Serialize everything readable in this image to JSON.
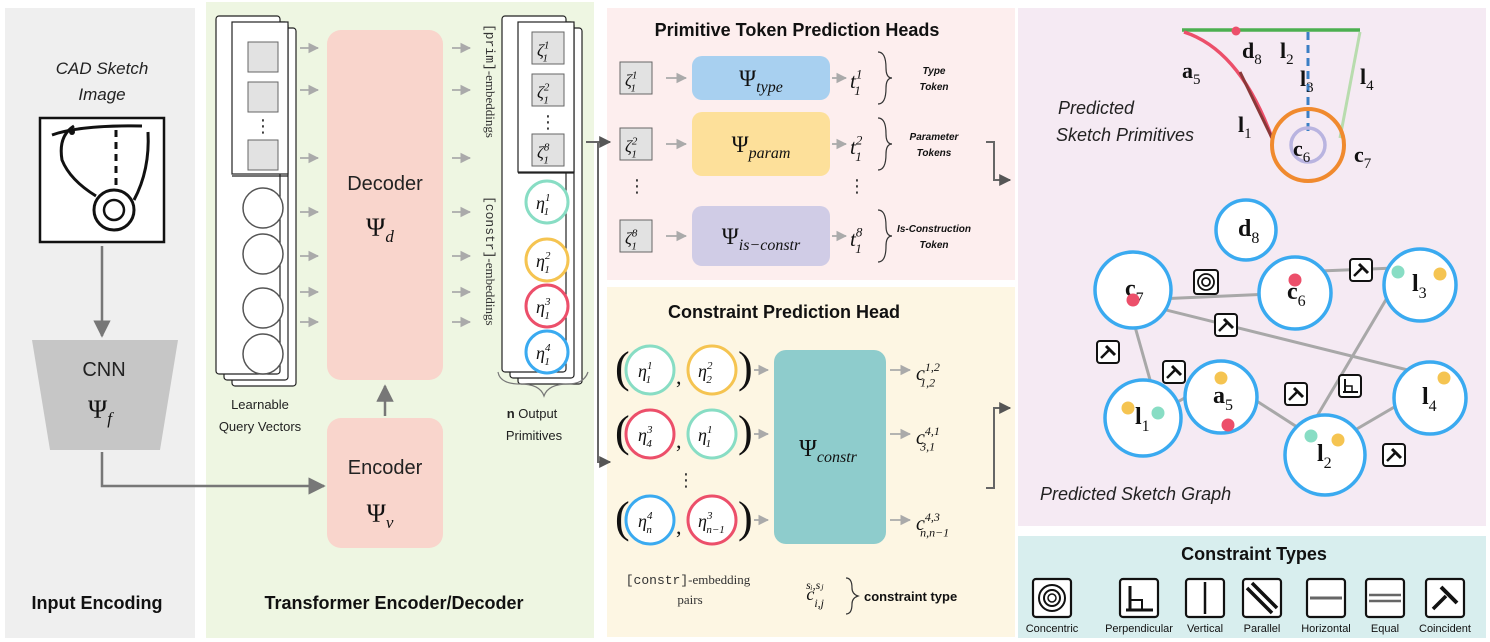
{
  "colors": {
    "panel_input": "#efefef",
    "panel_transformer": "#eef6e2",
    "panel_heads": "#fdeeee",
    "panel_constraint_head": "#fdf6e3",
    "panel_graph": "#f5eaf3",
    "panel_types": "#d8eeee",
    "decoder_encoder": "#f9d5cc",
    "psi_type": "#a8d0f0",
    "psi_param": "#fde09a",
    "psi_isconstr": "#d0cce6",
    "psi_constr": "#8ecccc",
    "node_blue": "#3aaaf0",
    "teal": "#88ddc4",
    "yellow": "#f5c451",
    "pink": "#ec4f6a",
    "orange": "#f08a2e",
    "green": "#4caf50",
    "light_green": "#b8dcae",
    "dark_red": "#8a3838"
  },
  "input_encoding": {
    "image_caption": "CAD Sketch Image",
    "image_caption_line1": "CAD Sketch",
    "image_caption_line2": "Image",
    "cnn_label": "CNN",
    "cnn_symbol": "Ψ",
    "cnn_sub": "f",
    "section_title": "Input Encoding"
  },
  "transformer": {
    "decoder_label": "Decoder",
    "decoder_symbol": "Ψ",
    "decoder_sub": "d",
    "encoder_label": "Encoder",
    "encoder_symbol": "Ψ",
    "encoder_sub": "v",
    "query_label_line1": "Learnable",
    "query_label_line2": "Query Vectors",
    "prim_embeddings_code": "[prim]",
    "prim_embeddings_text": "-embeddings",
    "constr_embeddings_code": "[constr]",
    "constr_embeddings_text": "-embeddings",
    "output_label_bold": "n",
    "output_label_rest": " Output",
    "output_label_line2": "Primitives",
    "section_title": "Transformer Encoder/Decoder",
    "zeta_tokens": [
      {
        "base": "ζ",
        "sub": "1",
        "sup": "1"
      },
      {
        "base": "ζ",
        "sub": "1",
        "sup": "2"
      },
      {
        "base": "ζ",
        "sub": "1",
        "sup": "8"
      }
    ],
    "eta_tokens": [
      {
        "base": "η",
        "sub": "1",
        "sup": "1",
        "color": "#88ddc4"
      },
      {
        "base": "η",
        "sub": "1",
        "sup": "2",
        "color": "#f5c451"
      },
      {
        "base": "η",
        "sub": "1",
        "sup": "3",
        "color": "#ec4f6a"
      },
      {
        "base": "η",
        "sub": "1",
        "sup": "4",
        "color": "#3aaaf0"
      }
    ]
  },
  "primitive_heads": {
    "title": "Primitive Token Prediction Heads",
    "rows": [
      {
        "input": {
          "base": "ζ",
          "sub": "1",
          "sup": "1"
        },
        "psi": "Ψ",
        "psi_sub": "type",
        "out": {
          "base": "t",
          "sub": "1",
          "sup": "1"
        },
        "label_line1": "Type",
        "label_line2": "Token"
      },
      {
        "input": {
          "base": "ζ",
          "sub": "1",
          "sup": "2"
        },
        "psi": "Ψ",
        "psi_sub": "param",
        "out": {
          "base": "t",
          "sub": "1",
          "sup": "2"
        },
        "label_line1": "Parameter",
        "label_line2": "Tokens"
      },
      {
        "input": {
          "base": "ζ",
          "sub": "1",
          "sup": "8"
        },
        "psi": "Ψ",
        "psi_sub": "is−constr",
        "out": {
          "base": "t",
          "sub": "1",
          "sup": "8"
        },
        "label_line1": "Is-Construction",
        "label_line2": "Token"
      }
    ]
  },
  "constraint_head": {
    "title": "Constraint Prediction Head",
    "psi": "Ψ",
    "psi_sub": "constr",
    "pairs": [
      {
        "a": {
          "base": "η",
          "sub": "1",
          "sup": "1",
          "color": "#88ddc4"
        },
        "b": {
          "base": "η",
          "sub": "2",
          "sup": "2",
          "color": "#f5c451"
        },
        "out": {
          "base": "c",
          "sub": "1,2",
          "sup": "1,2"
        }
      },
      {
        "a": {
          "base": "η",
          "sub": "4",
          "sup": "3",
          "color": "#ec4f6a"
        },
        "b": {
          "base": "η",
          "sub": "1",
          "sup": "1",
          "color": "#88ddc4"
        },
        "out": {
          "base": "c",
          "sub": "3,1",
          "sup": "4,1"
        }
      },
      {
        "a": {
          "base": "η",
          "sub": "n",
          "sup": "4",
          "color": "#3aaaf0"
        },
        "b": {
          "base": "η",
          "sub": "n−1",
          "sup": "3",
          "color": "#ec4f6a"
        },
        "out": {
          "base": "c",
          "sub": "n,n−1",
          "sup": "4,3"
        }
      }
    ],
    "pairs_label_code": "[constr]",
    "pairs_label_text": "-embedding",
    "pairs_label_line2": "pairs",
    "legend_symbol": {
      "base": "c",
      "sub": "i,j",
      "sup": "sᵢ,sⱼ"
    },
    "legend_text": "constraint type"
  },
  "sketch_primitives": {
    "title_line1": "Predicted",
    "title_line2": "Sketch Primitives",
    "labels": [
      {
        "base": "d",
        "sub": "8"
      },
      {
        "base": "l",
        "sub": "2"
      },
      {
        "base": "a",
        "sub": "5"
      },
      {
        "base": "l",
        "sub": "3"
      },
      {
        "base": "l",
        "sub": "4"
      },
      {
        "base": "l",
        "sub": "1"
      },
      {
        "base": "c",
        "sub": "6"
      },
      {
        "base": "c",
        "sub": "7"
      }
    ]
  },
  "sketch_graph": {
    "title": "Predicted Sketch Graph",
    "nodes": [
      {
        "id": "d8",
        "base": "d",
        "sub": "8"
      },
      {
        "id": "c7",
        "base": "c",
        "sub": "7"
      },
      {
        "id": "c6",
        "base": "c",
        "sub": "6"
      },
      {
        "id": "l3",
        "base": "l",
        "sub": "3"
      },
      {
        "id": "a5",
        "base": "a",
        "sub": "5"
      },
      {
        "id": "l1",
        "base": "l",
        "sub": "1"
      },
      {
        "id": "l2",
        "base": "l",
        "sub": "2"
      },
      {
        "id": "l4",
        "base": "l",
        "sub": "4"
      }
    ]
  },
  "constraint_types": {
    "title": "Constraint Types",
    "items": [
      {
        "label": "Concentric",
        "icon": "concentric-icon"
      },
      {
        "label": "Perpendicular",
        "icon": "perpendicular-icon"
      },
      {
        "label": "Vertical",
        "icon": "vertical-icon"
      },
      {
        "label": "Parallel",
        "icon": "parallel-icon"
      },
      {
        "label": "Horizontal",
        "icon": "horizontal-icon"
      },
      {
        "label": "Equal",
        "icon": "equal-icon"
      },
      {
        "label": "Coincident",
        "icon": "coincident-icon"
      }
    ]
  }
}
